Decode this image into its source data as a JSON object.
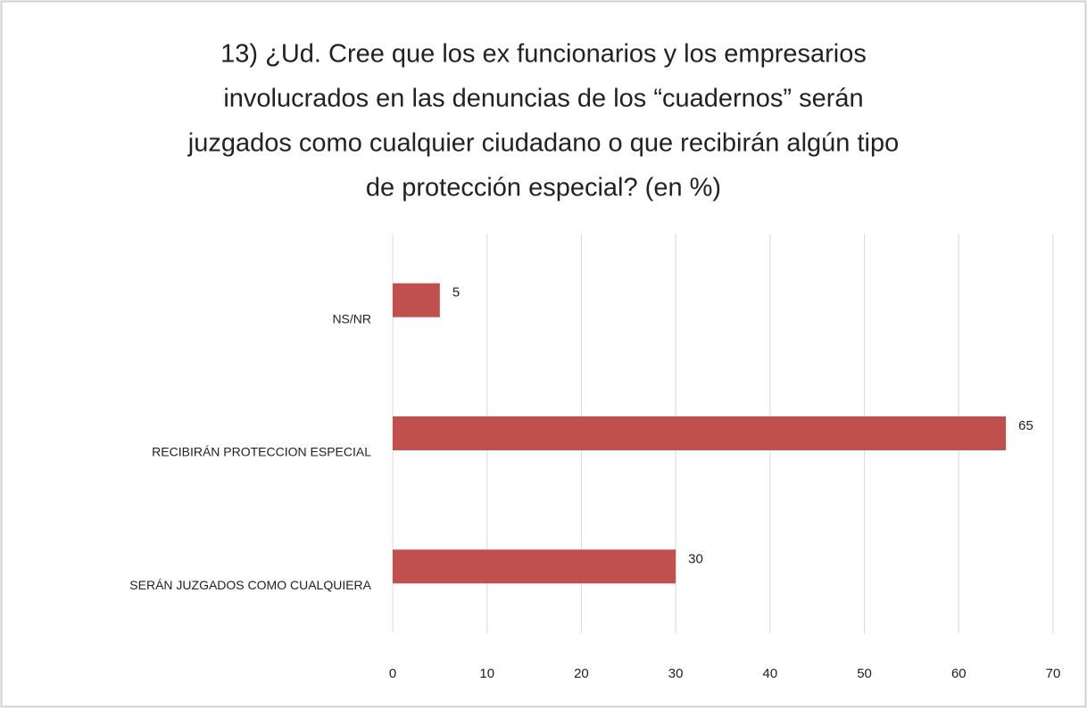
{
  "chart_data": {
    "type": "bar",
    "orientation": "horizontal",
    "title": [
      "13) ¿Ud. Cree que los ex funcionarios y los empresarios",
      "involucrados en las denuncias de los “cuadernos” serán",
      "juzgados como cualquier ciudadano o que recibirán algún tipo",
      "de protección especial? (en %)"
    ],
    "categories": [
      "NS/NR",
      "RECIBIRÁN PROTECCION ESPECIAL",
      "SERÁN JUZGADOS COMO CUALQUIERA"
    ],
    "values": [
      5,
      65,
      30
    ],
    "color": "#c0504d",
    "xlim": [
      0,
      70
    ],
    "xticks": [
      0,
      10,
      20,
      30,
      40,
      50,
      60,
      70
    ],
    "grid": true
  }
}
